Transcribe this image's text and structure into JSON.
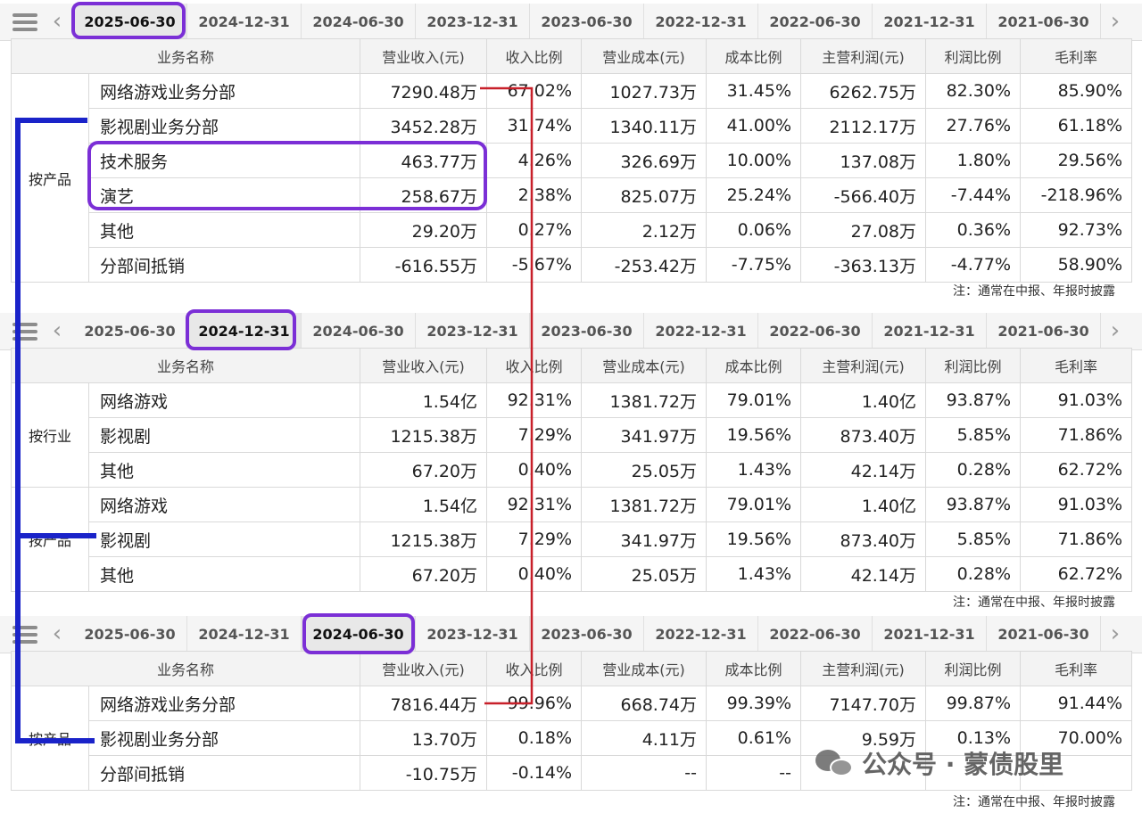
{
  "tabs": [
    "2025-06-30",
    "2024-12-31",
    "2024-06-30",
    "2023-12-31",
    "2023-06-30",
    "2022-12-31",
    "2022-06-30",
    "2021-12-31",
    "2021-06-30"
  ],
  "icons": {
    "menu": "menu-icon",
    "prev": "chevron-left-icon",
    "next": "chevron-right-icon",
    "watermark": "wechat-icon"
  },
  "headers": [
    "业务名称",
    "营业收入(元)",
    "收入比例",
    "营业成本(元)",
    "成本比例",
    "主营利润(元)",
    "利润比例",
    "毛利率"
  ],
  "note": "注：通常在中报、年报时披露",
  "colors": {
    "highlight_ring": "#7b2fd6",
    "annotation_blue": "#1a23c9",
    "annotation_red": "#c8202a"
  },
  "panels": [
    {
      "active_tab": "2025-06-30",
      "groups": [
        {
          "label": "按产品",
          "rows": [
            [
              "网络游戏业务分部",
              "7290.48万",
              "67.02%",
              "1027.73万",
              "31.45%",
              "6262.75万",
              "82.30%",
              "85.90%"
            ],
            [
              "影视剧业务分部",
              "3452.28万",
              "31.74%",
              "1340.11万",
              "41.00%",
              "2112.17万",
              "27.76%",
              "61.18%"
            ],
            [
              "技术服务",
              "463.77万",
              "4.26%",
              "326.69万",
              "10.00%",
              "137.08万",
              "1.80%",
              "29.56%"
            ],
            [
              "演艺",
              "258.67万",
              "2.38%",
              "825.07万",
              "25.24%",
              "-566.40万",
              "-7.44%",
              "-218.96%"
            ],
            [
              "其他",
              "29.20万",
              "0.27%",
              "2.12万",
              "0.06%",
              "27.08万",
              "0.36%",
              "92.73%"
            ],
            [
              "分部间抵销",
              "-616.55万",
              "-5.67%",
              "-253.42万",
              "-7.75%",
              "-363.13万",
              "-4.77%",
              "58.90%"
            ]
          ]
        }
      ]
    },
    {
      "active_tab": "2024-12-31",
      "groups": [
        {
          "label": "按行业",
          "rows": [
            [
              "网络游戏",
              "1.54亿",
              "92.31%",
              "1381.72万",
              "79.01%",
              "1.40亿",
              "93.87%",
              "91.03%"
            ],
            [
              "影视剧",
              "1215.38万",
              "7.29%",
              "341.97万",
              "19.56%",
              "873.40万",
              "5.85%",
              "71.86%"
            ],
            [
              "其他",
              "67.20万",
              "0.40%",
              "25.05万",
              "1.43%",
              "42.14万",
              "0.28%",
              "62.72%"
            ]
          ]
        },
        {
          "label": "按产品",
          "rows": [
            [
              "网络游戏",
              "1.54亿",
              "92.31%",
              "1381.72万",
              "79.01%",
              "1.40亿",
              "93.87%",
              "91.03%"
            ],
            [
              "影视剧",
              "1215.38万",
              "7.29%",
              "341.97万",
              "19.56%",
              "873.40万",
              "5.85%",
              "71.86%"
            ],
            [
              "其他",
              "67.20万",
              "0.40%",
              "25.05万",
              "1.43%",
              "42.14万",
              "0.28%",
              "62.72%"
            ]
          ]
        }
      ]
    },
    {
      "active_tab": "2024-06-30",
      "groups": [
        {
          "label": "按产品",
          "rows": [
            [
              "网络游戏业务分部",
              "7816.44万",
              "99.96%",
              "668.74万",
              "99.39%",
              "7147.70万",
              "99.87%",
              "91.44%"
            ],
            [
              "影视剧业务分部",
              "13.70万",
              "0.18%",
              "4.11万",
              "0.61%",
              "9.59万",
              "0.13%",
              "70.00%"
            ],
            [
              "分部间抵销",
              "-10.75万",
              "-0.14%",
              "--",
              "--",
              "",
              "",
              ""
            ]
          ]
        }
      ]
    }
  ],
  "watermark": {
    "text": "公众号 · 蒙债股里"
  }
}
